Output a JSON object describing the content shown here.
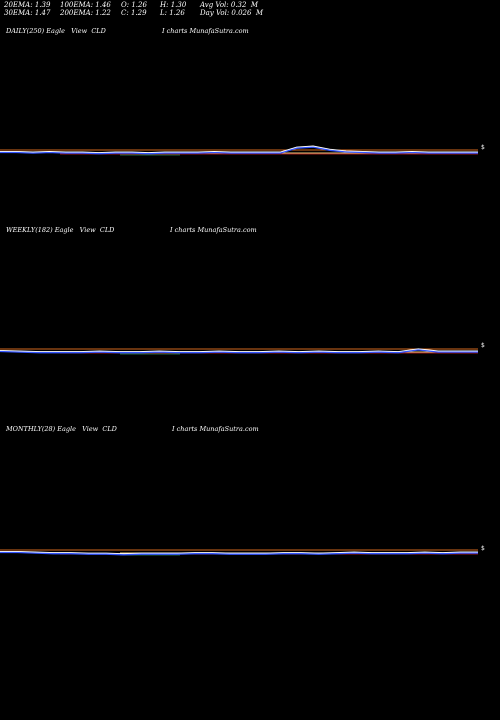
{
  "header": {
    "ema20": "20EMA: 1.39",
    "ema100": "100EMA: 1.46",
    "open": "O: 1.26",
    "high": "H: 1.30",
    "avg_vol": "Avg Vol: 0.32  M",
    "ema30": "30EMA: 1.47",
    "ema200": "200EMA: 1.22",
    "close": "C: 1.29",
    "low": "L: 1.26",
    "day_vol": "Day Vol: 0.026  M"
  },
  "panels": [
    {
      "label": "DAILY(250) Eagle   View  CLD",
      "site": "I charts MunafaSutra.com",
      "price_tag": "$"
    },
    {
      "label": "WEEKLY(182) Eagle   View  CLD",
      "site": "I charts MunafaSutra.com",
      "price_tag": "$"
    },
    {
      "label": "MONTHLY(28) Eagle   View  CLD",
      "site": "I charts MunafaSutra.com",
      "price_tag": "$"
    }
  ],
  "colors": {
    "background": "#000000",
    "price": "#ffffff",
    "ema_orange": "#d2691e",
    "ema_blue": "#3355ff",
    "ema_red": "#cc2222",
    "ema_green": "#2e8b57",
    "ema_yellow": "#e8c880"
  },
  "chart_data": [
    {
      "type": "line",
      "series": [
        {
          "values": [
            1.3,
            1.3,
            1.29,
            1.3,
            1.29,
            1.29,
            1.28,
            1.29,
            1.29,
            1.28,
            1.29,
            1.29,
            1.29,
            1.3,
            1.29,
            1.29,
            1.29,
            1.29,
            1.38,
            1.4,
            1.34,
            1.31,
            1.3,
            1.29,
            1.29,
            1.3,
            1.29,
            1.29,
            1.29,
            1.29
          ]
        }
      ]
    },
    {
      "type": "line",
      "series": [
        {
          "values": [
            1.3,
            1.29,
            1.28,
            1.28,
            1.28,
            1.29,
            1.28,
            1.28,
            1.29,
            1.28,
            1.28,
            1.29,
            1.28,
            1.28,
            1.29,
            1.28,
            1.29,
            1.28,
            1.28,
            1.29,
            1.28,
            1.33,
            1.29,
            1.29,
            1.29
          ]
        }
      ]
    },
    {
      "type": "line",
      "series": [
        {
          "values": [
            1.3,
            1.3,
            1.29,
            1.28,
            1.28,
            1.27,
            1.27,
            1.26,
            1.27,
            1.27,
            1.27,
            1.28,
            1.28,
            1.27,
            1.27,
            1.27,
            1.28,
            1.28,
            1.27,
            1.28,
            1.29,
            1.28,
            1.28,
            1.28,
            1.29,
            1.28,
            1.29,
            1.29
          ]
        }
      ]
    }
  ]
}
